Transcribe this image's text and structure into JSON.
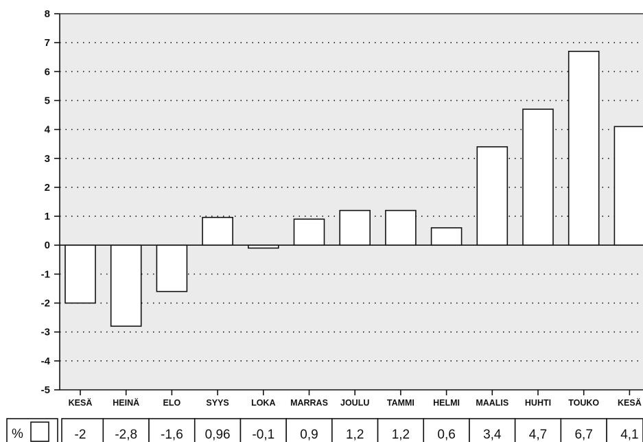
{
  "chart_data": {
    "type": "bar",
    "categories": [
      "KESÄ",
      "HEINÄ",
      "ELO",
      "SYYS",
      "LOKA",
      "MARRAS",
      "JOULU",
      "TAMMI",
      "HELMI",
      "MAALIS",
      "HUHTI",
      "TOUKO",
      "KESÄ"
    ],
    "values": [
      -2,
      -2.8,
      -1.6,
      0.96,
      -0.1,
      0.9,
      1.2,
      1.2,
      0.6,
      3.4,
      4.7,
      6.7,
      4.1
    ],
    "value_labels": [
      "-2",
      "-2,8",
      "-1,6",
      "0,96",
      "-0,1",
      "0,9",
      "1,2",
      "1,2",
      "0,6",
      "3,4",
      "4,7",
      "6,7",
      "4,1"
    ],
    "ylim": [
      -5,
      8
    ],
    "yticks": [
      "8",
      "7",
      "6",
      "5",
      "4",
      "3",
      "2",
      "1",
      "0",
      "-1",
      "-2",
      "-3",
      "-4",
      "-5"
    ],
    "title": "",
    "xlabel": "",
    "ylabel": "",
    "grid": "dotted horizontal",
    "table_unit_label": "%",
    "colors": {
      "plot_background": "#ebebeb",
      "bar_fill": "#ffffff",
      "stroke": "#111111"
    }
  }
}
